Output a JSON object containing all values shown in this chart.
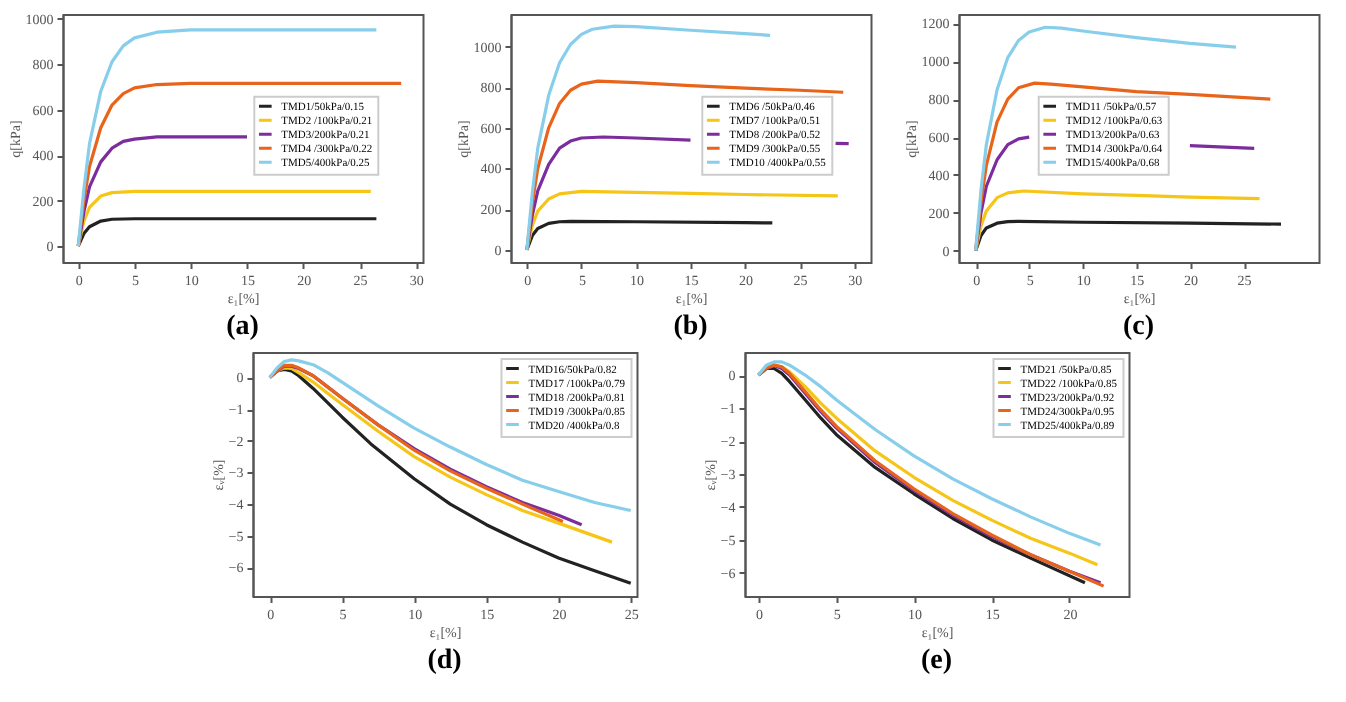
{
  "chart_data": [
    {
      "type": "line",
      "title": "(a)",
      "xlabel": "ε₁[%]",
      "ylabel": "q[kPa]",
      "xlim": [
        -1.4,
        30.6
      ],
      "ylim": [
        -70,
        1020
      ],
      "xticks": [
        0,
        5,
        10,
        15,
        20,
        25,
        30
      ],
      "yticks": [
        0,
        200,
        400,
        600,
        800,
        1000
      ],
      "legend": "right",
      "series": [
        {
          "name": "TMD1/50kPa/0.15",
          "color": "#222222",
          "x": [
            0,
            0.5,
            1,
            2,
            3,
            5,
            10,
            20,
            26.5
          ],
          "values": [
            0,
            55,
            85,
            110,
            118,
            120,
            120,
            120,
            120
          ]
        },
        {
          "name": "TMD2 /100kPa/0.21",
          "color": "#f5c518",
          "x": [
            0,
            0.5,
            1,
            2,
            3,
            5,
            10,
            26
          ],
          "values": [
            0,
            110,
            170,
            220,
            235,
            240,
            240,
            240
          ]
        },
        {
          "name": "TMD3/200kPa/0.21",
          "color": "#7b2d9e",
          "x": [
            0,
            0.5,
            1,
            2,
            3,
            4,
            5,
            7,
            10,
            15
          ],
          "values": [
            0,
            150,
            260,
            370,
            430,
            460,
            470,
            480,
            480,
            480
          ]
        },
        {
          "name": "TMD4 /300kPa/0.22",
          "color": "#e8641b",
          "x": [
            0,
            0.5,
            1,
            2,
            3,
            4,
            5,
            7,
            10,
            20,
            28.7
          ],
          "values": [
            0,
            200,
            350,
            520,
            620,
            670,
            695,
            710,
            715,
            715,
            715
          ]
        },
        {
          "name": "TMD5/400kPa/0.25",
          "color": "#87ceeb",
          "x": [
            0,
            0.5,
            1,
            2,
            3,
            4,
            5,
            7,
            10,
            20,
            26.5
          ],
          "values": [
            0,
            250,
            450,
            680,
            810,
            880,
            915,
            940,
            950,
            950,
            950
          ]
        }
      ]
    },
    {
      "type": "line",
      "title": "(b)",
      "xlabel": "ε₁[%]",
      "ylabel": "q[kPa]",
      "xlim": [
        -1.5,
        31.5
      ],
      "ylim": [
        -60,
        1160
      ],
      "xticks": [
        0,
        5,
        10,
        15,
        20,
        25,
        30
      ],
      "yticks": [
        0,
        200,
        400,
        600,
        800,
        1000
      ],
      "legend": "right",
      "series": [
        {
          "name": "TMD6 /50kPa/0.46",
          "color": "#222222",
          "x": [
            0,
            0.5,
            1,
            2,
            3,
            4,
            10,
            20,
            22.5
          ],
          "values": [
            0,
            70,
            105,
            130,
            138,
            140,
            138,
            134,
            132
          ]
        },
        {
          "name": "TMD7 /100kPa/0.51",
          "color": "#f5c518",
          "x": [
            0,
            0.5,
            1,
            2,
            3,
            5,
            10,
            15,
            20,
            28.5
          ],
          "values": [
            0,
            120,
            190,
            250,
            275,
            287,
            283,
            278,
            272,
            265
          ]
        },
        {
          "name": "TMD8 /200kPa/0.52",
          "color": "#7b2d9e",
          "x": [
            0,
            0.5,
            1,
            2,
            3,
            4,
            5,
            7,
            10,
            15,
            20,
            28.3,
            29.5
          ],
          "values": [
            0,
            170,
            290,
            420,
            500,
            535,
            550,
            555,
            550,
            540,
            null,
            524,
            522
          ]
        },
        {
          "name": "TMD9 /300kPa/0.55",
          "color": "#e8641b",
          "x": [
            0,
            0.5,
            1,
            2,
            3,
            4,
            5,
            6.5,
            10,
            15,
            20,
            25,
            29
          ],
          "values": [
            0,
            230,
            400,
            600,
            720,
            785,
            815,
            830,
            822,
            808,
            795,
            785,
            775
          ]
        },
        {
          "name": "TMD10 /400kPa/0.55",
          "color": "#87ceeb",
          "x": [
            0,
            0.5,
            1,
            2,
            3,
            4,
            5,
            6,
            8,
            10,
            15,
            20,
            22.3
          ],
          "values": [
            0,
            280,
            500,
            760,
            920,
            1010,
            1060,
            1085,
            1100,
            1098,
            1080,
            1063,
            1055
          ]
        }
      ]
    },
    {
      "type": "line",
      "title": "(c)",
      "xlabel": "ε₁[%]",
      "ylabel": "q[kPa]",
      "xlim": [
        -1.6,
        32
      ],
      "ylim": [
        -60,
        1250
      ],
      "xticks": [
        0,
        5,
        10,
        15,
        20,
        25
      ],
      "yticks": [
        0,
        200,
        400,
        600,
        800,
        1000,
        1200
      ],
      "legend": "center",
      "series": [
        {
          "name": "TMD11 /50kPa/0.57",
          "color": "#222222",
          "x": [
            0,
            0.5,
            1,
            2,
            3,
            4,
            10,
            20,
            28.5
          ],
          "values": [
            0,
            80,
            120,
            145,
            153,
            155,
            150,
            145,
            140
          ]
        },
        {
          "name": "TMD12 /100kPa/0.63",
          "color": "#f5c518",
          "x": [
            0,
            0.5,
            1,
            2,
            3,
            4.5,
            10,
            15,
            20,
            26.5
          ],
          "values": [
            0,
            130,
            210,
            280,
            305,
            315,
            300,
            292,
            283,
            275
          ]
        },
        {
          "name": "TMD13/200kPa/0.63",
          "color": "#7b2d9e",
          "x": [
            0,
            0.5,
            1,
            2,
            3,
            4,
            5,
            7,
            10,
            15,
            20,
            26
          ],
          "values": [
            0,
            200,
            340,
            480,
            560,
            590,
            600,
            null,
            null,
            null,
            555,
            540
          ]
        },
        {
          "name": "TMD14 /300kPa/0.64",
          "color": "#e8641b",
          "x": [
            0,
            0.5,
            1,
            2,
            3,
            4,
            5.5,
            7,
            10,
            15,
            20,
            27.5
          ],
          "values": [
            0,
            260,
            450,
            680,
            800,
            860,
            885,
            880,
            865,
            840,
            825,
            800
          ]
        },
        {
          "name": "TMD15/400kPa/0.68",
          "color": "#87ceeb",
          "x": [
            0,
            0.5,
            1,
            2,
            3,
            4,
            5,
            6.5,
            8,
            10,
            15,
            20,
            24.3
          ],
          "values": [
            0,
            320,
            560,
            850,
            1020,
            1110,
            1155,
            1180,
            1175,
            1160,
            1125,
            1095,
            1075
          ]
        }
      ]
    },
    {
      "type": "line",
      "title": "(d)",
      "xlabel": "ε₁[%]",
      "ylabel": "εᵥ[%]",
      "xlim": [
        -1.2,
        25.4
      ],
      "ylim": [
        -6.9,
        0.8
      ],
      "xticks": [
        0,
        5,
        10,
        15,
        20,
        25
      ],
      "yticks": [
        -6,
        -5,
        -4,
        -3,
        -2,
        -1,
        0
      ],
      "legend": "top right",
      "series": [
        {
          "name": "TMD16/50kPa/0.82",
          "color": "#222222",
          "x": [
            0,
            0.5,
            1,
            1.5,
            2,
            3,
            4,
            5,
            7,
            10,
            12.5,
            15,
            17.5,
            20,
            22.5,
            25
          ],
          "values": [
            0,
            0.2,
            0.25,
            0.2,
            0.05,
            -0.35,
            -0.8,
            -1.25,
            -2.1,
            -3.2,
            -4.0,
            -4.65,
            -5.2,
            -5.7,
            -6.1,
            -6.5
          ]
        },
        {
          "name": "TMD17 /100kPa/0.79",
          "color": "#f5c518",
          "x": [
            0,
            0.5,
            1,
            1.5,
            2,
            3,
            4,
            5,
            7.5,
            10,
            12.5,
            15,
            17.5,
            20,
            23.7
          ],
          "values": [
            0,
            0.2,
            0.3,
            0.28,
            0.15,
            -0.15,
            -0.5,
            -0.85,
            -1.7,
            -2.5,
            -3.15,
            -3.7,
            -4.2,
            -4.6,
            -5.2
          ]
        },
        {
          "name": "TMD18 /200kPa/0.81",
          "color": "#7b2d9e",
          "x": [
            0,
            0.5,
            1,
            1.5,
            2,
            3,
            4,
            5,
            7.5,
            10,
            12.5,
            15,
            17.5,
            20,
            21.6
          ],
          "values": [
            0,
            0.2,
            0.35,
            0.35,
            0.28,
            0.05,
            -0.3,
            -0.65,
            -1.5,
            -2.25,
            -2.9,
            -3.45,
            -3.95,
            -4.35,
            -4.65
          ]
        },
        {
          "name": "TMD19 /300kPa/0.85",
          "color": "#e8641b",
          "x": [
            0,
            0.5,
            1,
            1.5,
            2,
            3,
            4,
            5,
            7.5,
            10,
            12.5,
            15,
            17.5,
            20.3
          ],
          "values": [
            0,
            0.22,
            0.38,
            0.38,
            0.3,
            0.05,
            -0.3,
            -0.65,
            -1.5,
            -2.3,
            -2.95,
            -3.5,
            -4.0,
            -4.55
          ]
        },
        {
          "name": "TMD20 /400kPa/0.8",
          "color": "#87ceeb",
          "x": [
            0,
            0.5,
            1,
            1.5,
            2,
            3,
            4,
            5,
            7.5,
            10,
            12.5,
            15,
            17.5,
            20,
            22.5,
            25
          ],
          "values": [
            0,
            0.3,
            0.5,
            0.55,
            0.52,
            0.4,
            0.15,
            -0.15,
            -0.9,
            -1.6,
            -2.2,
            -2.75,
            -3.25,
            -3.6,
            -3.95,
            -4.2
          ]
        }
      ]
    },
    {
      "type": "line",
      "title": "(e)",
      "xlabel": "ε₁[%]",
      "ylabel": "εᵥ[%]",
      "xlim": [
        -0.9,
        23.8
      ],
      "ylim": [
        -6.7,
        0.7
      ],
      "xticks": [
        0,
        5,
        10,
        15,
        20
      ],
      "yticks": [
        -6,
        -5,
        -4,
        -3,
        -2,
        -1,
        0
      ],
      "legend": "top right",
      "series": [
        {
          "name": "TMD21 /50kPa/0.85",
          "color": "#222222",
          "x": [
            0,
            0.5,
            1,
            1.5,
            2,
            3,
            4,
            5,
            7.5,
            10,
            12.5,
            15,
            17.5,
            21
          ],
          "values": [
            0,
            0.2,
            0.2,
            0.05,
            -0.2,
            -0.75,
            -1.3,
            -1.8,
            -2.8,
            -3.6,
            -4.35,
            -5.0,
            -5.55,
            -6.3
          ]
        },
        {
          "name": "TMD22 /100kPa/0.85",
          "color": "#f5c518",
          "x": [
            0,
            0.5,
            1,
            1.5,
            2,
            3,
            4,
            5,
            7.5,
            10,
            12.5,
            15,
            17.5,
            20,
            21.8
          ],
          "values": [
            0,
            0.2,
            0.3,
            0.25,
            0.1,
            -0.35,
            -0.85,
            -1.3,
            -2.3,
            -3.1,
            -3.8,
            -4.4,
            -4.95,
            -5.4,
            -5.75
          ]
        },
        {
          "name": "TMD23/200kPa/0.92",
          "color": "#7b2d9e",
          "x": [
            0,
            0.5,
            1,
            1.5,
            2,
            3,
            4,
            5,
            7.5,
            10,
            12.5,
            15,
            17.5,
            20,
            22
          ],
          "values": [
            0,
            0.2,
            0.3,
            0.2,
            0.0,
            -0.55,
            -1.1,
            -1.6,
            -2.65,
            -3.5,
            -4.25,
            -4.9,
            -5.45,
            -5.95,
            -6.3
          ]
        },
        {
          "name": "TMD24/300kPa/0.95",
          "color": "#e8641b",
          "x": [
            0,
            0.5,
            1,
            1.5,
            2,
            3,
            4,
            5,
            7.5,
            10,
            12.5,
            15,
            17.5,
            20,
            22.2
          ],
          "values": [
            0,
            0.22,
            0.3,
            0.25,
            0.05,
            -0.5,
            -1.05,
            -1.55,
            -2.6,
            -3.45,
            -4.2,
            -4.85,
            -5.45,
            -5.95,
            -6.4
          ]
        },
        {
          "name": "TMD25/400kPa/0.89",
          "color": "#87ceeb",
          "x": [
            0,
            0.5,
            1,
            1.5,
            2,
            3,
            4,
            5,
            7.5,
            10,
            12.5,
            15,
            17.5,
            20,
            22
          ],
          "values": [
            0,
            0.3,
            0.4,
            0.4,
            0.3,
            0.0,
            -0.35,
            -0.75,
            -1.65,
            -2.45,
            -3.15,
            -3.75,
            -4.3,
            -4.8,
            -5.15
          ]
        }
      ]
    }
  ]
}
